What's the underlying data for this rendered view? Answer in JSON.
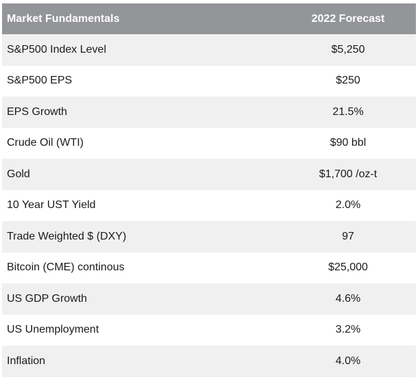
{
  "table": {
    "header": {
      "label": "Market Fundamentals",
      "value": "2022 Forecast"
    },
    "rows": [
      {
        "label": "S&P500 Index Level",
        "value": "$5,250"
      },
      {
        "label": "S&P500 EPS",
        "value": "$250"
      },
      {
        "label": "EPS Growth",
        "value": "21.5%"
      },
      {
        "label": "Crude Oil (WTI)",
        "value": "$90 bbl"
      },
      {
        "label": "Gold",
        "value": "$1,700 /oz-t"
      },
      {
        "label": "10 Year UST Yield",
        "value": "2.0%"
      },
      {
        "label": "Trade Weighted $ (DXY)",
        "value": "97"
      },
      {
        "label": "Bitcoin (CME) continous",
        "value": "$25,000"
      },
      {
        "label": "US GDP Growth",
        "value": "4.6%"
      },
      {
        "label": "US Unemployment",
        "value": "3.2%"
      },
      {
        "label": "Inflation",
        "value": "4.0%"
      }
    ]
  },
  "colors": {
    "header_bg": "#939598",
    "row_shade": "#f0f0f1",
    "text": "#1a1a1a"
  }
}
